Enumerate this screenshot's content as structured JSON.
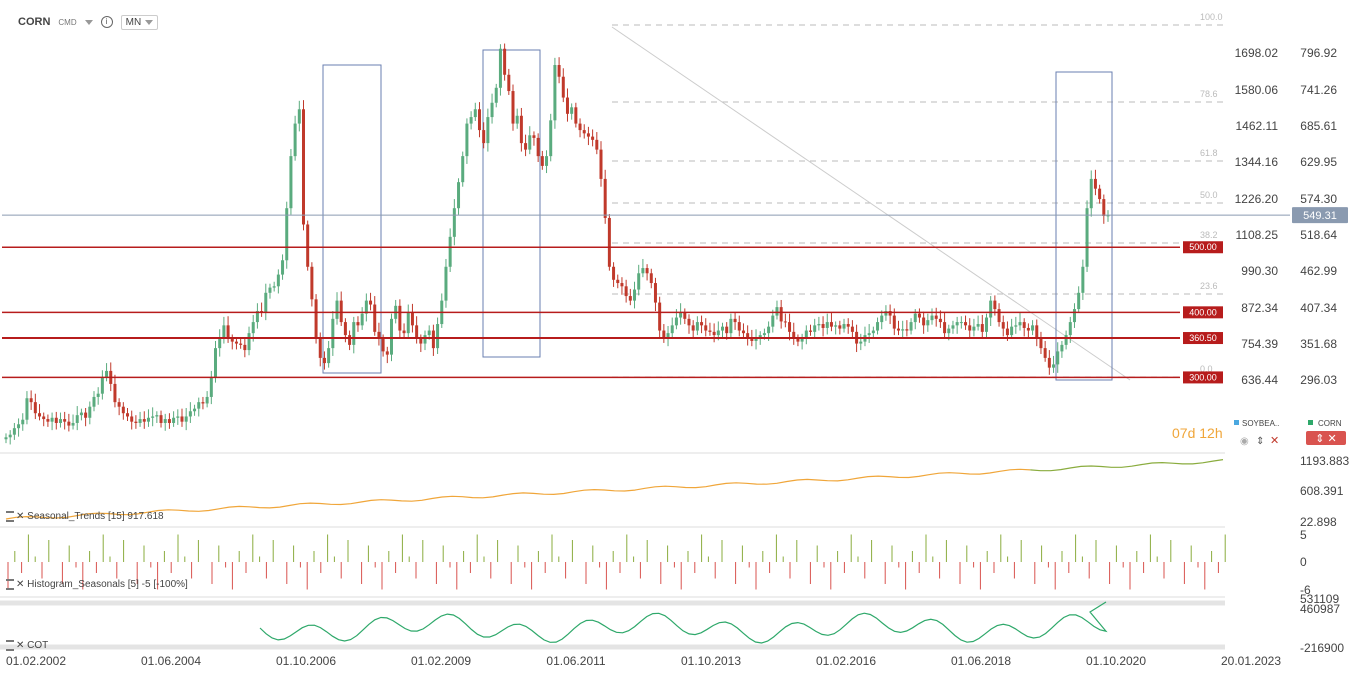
{
  "toolbar": {
    "symbol": "CORN",
    "exchange": "CMD",
    "timeframe": "MN"
  },
  "chart_data": {
    "type": "candlestick",
    "x_ticks": [
      "01.02.2002",
      "01.06.2004",
      "01.10.2006",
      "01.02.2009",
      "01.06.2011",
      "01.10.2013",
      "01.02.2016",
      "01.06.2018",
      "01.10.2020",
      "20.01.2023"
    ],
    "y_ticks_left": [
      "1698.02",
      "1580.06",
      "1462.11",
      "1344.16",
      "1226.20",
      "1108.25",
      "990.30",
      "872.34",
      "754.39",
      "636.44"
    ],
    "y_ticks_right": [
      "796.92",
      "741.26",
      "685.61",
      "629.95",
      "574.30",
      "518.64",
      "462.99",
      "407.34",
      "351.68",
      "296.03"
    ],
    "last_price": "549.31",
    "levels": [
      "500.00",
      "400.00",
      "360.50",
      "300.00"
    ],
    "fib_labels": [
      "100.0",
      "78.6",
      "61.8",
      "50.0",
      "38.2",
      "23.6",
      "0.0"
    ],
    "close_series": [
      208,
      212,
      222,
      228,
      235,
      268,
      262,
      245,
      240,
      236,
      232,
      238,
      230,
      236,
      232,
      226,
      230,
      242,
      246,
      238,
      255,
      270,
      275,
      300,
      310,
      290,
      262,
      255,
      245,
      240,
      232,
      230,
      236,
      232,
      238,
      240,
      242,
      230,
      236,
      230,
      238,
      240,
      232,
      240,
      248,
      252,
      262,
      260,
      270,
      300,
      345,
      362,
      380,
      360,
      355,
      352,
      350,
      342,
      368,
      385,
      402,
      400,
      430,
      438,
      440,
      458,
      480,
      560,
      640,
      690,
      712,
      535,
      470,
      420,
      360,
      330,
      322,
      345,
      390,
      418,
      385,
      365,
      350,
      385,
      380,
      398,
      418,
      412,
      370,
      360,
      340,
      335,
      390,
      410,
      372,
      368,
      400,
      380,
      360,
      352,
      365,
      372,
      345,
      382,
      418,
      470,
      516,
      560,
      600,
      640,
      690,
      700,
      712,
      680,
      660,
      700,
      722,
      745,
      805,
      765,
      740,
      690,
      702,
      660,
      650,
      672,
      668,
      640,
      625,
      640,
      695,
      780,
      762,
      730,
      705,
      715,
      690,
      680,
      675,
      670,
      665,
      650,
      605,
      545,
      470,
      450,
      445,
      440,
      425,
      418,
      435,
      460,
      468,
      460,
      445,
      415,
      372,
      360,
      368,
      380,
      392,
      400,
      390,
      380,
      372,
      385,
      380,
      372,
      370,
      365,
      372,
      378,
      368,
      390,
      385,
      372,
      368,
      360,
      356,
      360,
      365,
      368,
      378,
      395,
      408,
      386,
      385,
      370,
      360,
      355,
      360,
      372,
      370,
      380,
      382,
      376,
      385,
      378,
      380,
      375,
      382,
      378,
      370,
      352,
      355,
      365,
      368,
      372,
      385,
      395,
      402,
      395,
      375,
      372,
      374,
      372,
      385,
      398,
      392,
      380,
      388,
      395,
      390,
      385,
      368,
      375,
      380,
      385,
      385,
      380,
      372,
      378,
      382,
      370,
      392,
      418,
      405,
      385,
      375,
      365,
      378,
      380,
      385,
      376,
      372,
      380,
      360,
      345,
      330,
      315,
      320,
      340,
      350,
      365,
      385,
      405,
      430,
      470,
      560,
      605,
      590,
      574,
      548,
      549
    ]
  },
  "bottom_panels": {
    "seasonal": {
      "label": "Seasonal_Trends [15] 917.618",
      "ticks": [
        "1193.883",
        "608.391",
        "22.898"
      ],
      "countdown": "07d 12h",
      "legend": [
        "SOYBEA..",
        "CORN"
      ]
    },
    "histogram": {
      "label": "Histogram_Seasonals [5] -5 [-100%]",
      "ticks": [
        "5",
        "0",
        "-6"
      ]
    },
    "cot": {
      "label": "COT",
      "ticks": [
        "531109",
        "460987",
        "-216900"
      ]
    }
  },
  "colors": {
    "bull": "#5aab7e",
    "bear": "#c0392b",
    "level": "#b71c1c",
    "orange": "#f0a63a",
    "green": "#2ea86a",
    "olive": "#8aac3e"
  }
}
